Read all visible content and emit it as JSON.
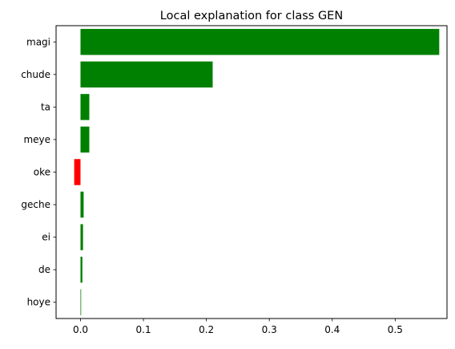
{
  "chart_data": {
    "type": "bar",
    "orientation": "horizontal",
    "title": "Local explanation for class GEN",
    "xlabel": "",
    "ylabel": "",
    "categories": [
      "magi",
      "chude",
      "ta",
      "meye",
      "oke",
      "geche",
      "ei",
      "de",
      "hoye"
    ],
    "values": [
      0.57,
      0.21,
      0.014,
      0.014,
      -0.01,
      0.005,
      0.004,
      0.003,
      0.001
    ],
    "colors": [
      "#008000",
      "#008000",
      "#008000",
      "#008000",
      "#ff0000",
      "#008000",
      "#008000",
      "#008000",
      "#008000"
    ],
    "xlim": [
      -0.0388,
      0.5823
    ],
    "xticks": [
      0.0,
      0.1,
      0.2,
      0.3,
      0.4,
      0.5
    ],
    "xtick_labels": [
      "0.0",
      "0.1",
      "0.2",
      "0.3",
      "0.4",
      "0.5"
    ],
    "grid": false,
    "legend": false
  }
}
